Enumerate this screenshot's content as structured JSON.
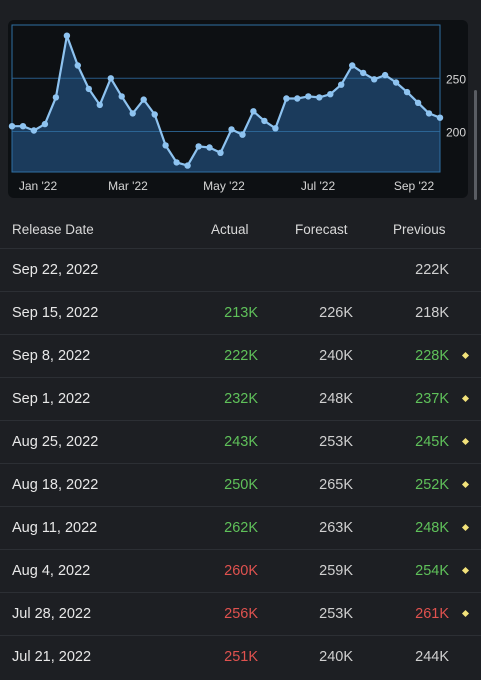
{
  "chart_data": {
    "type": "area",
    "x_ticks": [
      "Jan '22",
      "Mar '22",
      "May '22",
      "Jul '22",
      "Sep '22"
    ],
    "y_ticks": [
      200,
      250
    ],
    "ylim": [
      162,
      300
    ],
    "values": [
      205,
      205,
      201,
      207,
      232,
      290,
      262,
      240,
      225,
      250,
      233,
      217,
      230,
      216,
      187,
      171,
      168,
      186,
      185,
      180,
      202,
      197,
      219,
      210,
      203,
      231,
      231,
      233,
      232,
      235,
      244,
      262,
      255,
      249,
      253,
      246,
      237,
      227,
      217,
      213
    ],
    "grid": true,
    "line_color": "#8ec3f0",
    "fill_color": "#1b3b5c",
    "border_color": "#2f6fa3"
  },
  "table": {
    "headers": {
      "date": "Release Date",
      "actual": "Actual",
      "forecast": "Forecast",
      "previous": "Previous"
    },
    "rows": [
      {
        "date": "Sep 22, 2022",
        "actual": "",
        "forecast": "",
        "previous": "222K",
        "actual_color": "",
        "previous_color": "#d0d0d0",
        "revised": false
      },
      {
        "date": "Sep 15, 2022",
        "actual": "213K",
        "forecast": "226K",
        "previous": "218K",
        "actual_color": "#5fc15a",
        "previous_color": "#d0d0d0",
        "revised": false
      },
      {
        "date": "Sep 8, 2022",
        "actual": "222K",
        "forecast": "240K",
        "previous": "228K",
        "actual_color": "#5fc15a",
        "previous_color": "#5fc15a",
        "revised": true
      },
      {
        "date": "Sep 1, 2022",
        "actual": "232K",
        "forecast": "248K",
        "previous": "237K",
        "actual_color": "#5fc15a",
        "previous_color": "#5fc15a",
        "revised": true
      },
      {
        "date": "Aug 25, 2022",
        "actual": "243K",
        "forecast": "253K",
        "previous": "245K",
        "actual_color": "#5fc15a",
        "previous_color": "#5fc15a",
        "revised": true
      },
      {
        "date": "Aug 18, 2022",
        "actual": "250K",
        "forecast": "265K",
        "previous": "252K",
        "actual_color": "#5fc15a",
        "previous_color": "#5fc15a",
        "revised": true
      },
      {
        "date": "Aug 11, 2022",
        "actual": "262K",
        "forecast": "263K",
        "previous": "248K",
        "actual_color": "#5fc15a",
        "previous_color": "#5fc15a",
        "revised": true
      },
      {
        "date": "Aug 4, 2022",
        "actual": "260K",
        "forecast": "259K",
        "previous": "254K",
        "actual_color": "#e0524f",
        "previous_color": "#5fc15a",
        "revised": true
      },
      {
        "date": "Jul 28, 2022",
        "actual": "256K",
        "forecast": "253K",
        "previous": "261K",
        "actual_color": "#e0524f",
        "previous_color": "#e0524f",
        "revised": true
      },
      {
        "date": "Jul 21, 2022",
        "actual": "251K",
        "forecast": "240K",
        "previous": "244K",
        "actual_color": "#e0524f",
        "previous_color": "#d0d0d0",
        "revised": false
      }
    ]
  }
}
